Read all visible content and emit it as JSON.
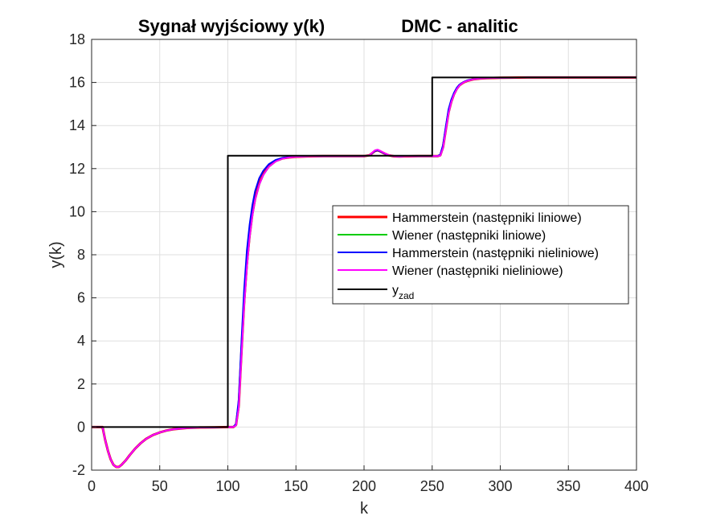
{
  "chart_data": {
    "type": "line",
    "title_left": "Sygnał wyjściowy y(k)",
    "title_right": "DMC - analitic",
    "xlabel": "k",
    "ylabel": "y(k)",
    "xlim": [
      0,
      400
    ],
    "ylim": [
      -2,
      18
    ],
    "xticks": [
      0,
      50,
      100,
      150,
      200,
      250,
      300,
      350,
      400
    ],
    "yticks": [
      -2,
      0,
      2,
      4,
      6,
      8,
      10,
      12,
      14,
      16,
      18
    ],
    "grid": true,
    "legend_position": "center-right",
    "series": [
      {
        "name": "Hammerstein (następniki liniowe)",
        "color": "#ff0000",
        "x": [
          0,
          8,
          10,
          12,
          14,
          16,
          18,
          20,
          22,
          25,
          28,
          32,
          36,
          40,
          45,
          50,
          55,
          60,
          70,
          80,
          90,
          100,
          104,
          106,
          108,
          110,
          112,
          114,
          116,
          118,
          120,
          123,
          126,
          130,
          135,
          140,
          145,
          150,
          160,
          170,
          180,
          190,
          200,
          204,
          206,
          208,
          210,
          212,
          215,
          218,
          222,
          226,
          230,
          240,
          250,
          254,
          256,
          258,
          260,
          262,
          264,
          266,
          268,
          270,
          273,
          276,
          280,
          285,
          290,
          300,
          320,
          350,
          400
        ],
        "y": [
          0,
          0,
          -0.6,
          -1.1,
          -1.5,
          -1.75,
          -1.85,
          -1.85,
          -1.75,
          -1.55,
          -1.3,
          -1.0,
          -0.75,
          -0.55,
          -0.37,
          -0.25,
          -0.16,
          -0.1,
          -0.04,
          -0.02,
          -0.01,
          0,
          0,
          0.1,
          1.0,
          3.5,
          5.8,
          7.6,
          8.9,
          9.9,
          10.6,
          11.3,
          11.75,
          12.1,
          12.35,
          12.47,
          12.52,
          12.55,
          12.57,
          12.58,
          12.58,
          12.58,
          12.58,
          12.62,
          12.72,
          12.82,
          12.85,
          12.8,
          12.7,
          12.62,
          12.57,
          12.56,
          12.57,
          12.58,
          12.58,
          12.58,
          12.62,
          13.0,
          13.8,
          14.6,
          15.1,
          15.45,
          15.7,
          15.87,
          16.0,
          16.08,
          16.14,
          16.18,
          16.2,
          16.22,
          16.23,
          16.23,
          16.23
        ]
      },
      {
        "name": "Wiener (następniki liniowe)",
        "color": "#00cc00",
        "x": [
          0,
          8,
          10,
          12,
          14,
          16,
          18,
          20,
          22,
          25,
          28,
          32,
          36,
          40,
          45,
          50,
          55,
          60,
          70,
          80,
          90,
          100,
          104,
          106,
          108,
          110,
          112,
          114,
          116,
          118,
          120,
          123,
          126,
          130,
          135,
          140,
          145,
          150,
          160,
          170,
          180,
          190,
          200,
          204,
          206,
          208,
          210,
          212,
          215,
          218,
          222,
          226,
          230,
          240,
          250,
          254,
          256,
          258,
          260,
          262,
          264,
          266,
          268,
          270,
          273,
          276,
          280,
          285,
          290,
          300,
          320,
          350,
          400
        ],
        "y": [
          0,
          0,
          -0.6,
          -1.1,
          -1.5,
          -1.75,
          -1.85,
          -1.85,
          -1.75,
          -1.55,
          -1.3,
          -1.0,
          -0.75,
          -0.55,
          -0.37,
          -0.25,
          -0.16,
          -0.1,
          -0.04,
          -0.02,
          -0.01,
          0,
          0,
          0.08,
          0.9,
          3.3,
          5.6,
          7.4,
          8.8,
          9.8,
          10.55,
          11.25,
          11.7,
          12.08,
          12.33,
          12.46,
          12.52,
          12.55,
          12.57,
          12.58,
          12.58,
          12.58,
          12.58,
          12.62,
          12.72,
          12.82,
          12.85,
          12.8,
          12.7,
          12.62,
          12.57,
          12.56,
          12.57,
          12.58,
          12.58,
          12.58,
          12.6,
          12.95,
          13.75,
          14.55,
          15.08,
          15.43,
          15.68,
          15.86,
          16.0,
          16.08,
          16.14,
          16.18,
          16.2,
          16.22,
          16.23,
          16.23,
          16.23
        ]
      },
      {
        "name": "Hammerstein (następniki nieliniowe)",
        "color": "#0000ff",
        "x": [
          0,
          8,
          10,
          12,
          14,
          16,
          18,
          20,
          22,
          25,
          28,
          32,
          36,
          40,
          45,
          50,
          55,
          60,
          70,
          80,
          90,
          100,
          104,
          106,
          108,
          110,
          112,
          114,
          116,
          118,
          120,
          123,
          126,
          130,
          135,
          140,
          145,
          150,
          160,
          170,
          180,
          190,
          200,
          204,
          206,
          208,
          210,
          212,
          215,
          218,
          222,
          226,
          230,
          240,
          250,
          254,
          256,
          258,
          260,
          262,
          264,
          266,
          268,
          270,
          273,
          276,
          280,
          285,
          290,
          300,
          320,
          350,
          400
        ],
        "y": [
          0,
          0,
          -0.6,
          -1.1,
          -1.5,
          -1.75,
          -1.85,
          -1.85,
          -1.75,
          -1.55,
          -1.3,
          -1.0,
          -0.75,
          -0.55,
          -0.37,
          -0.25,
          -0.16,
          -0.1,
          -0.04,
          -0.02,
          -0.01,
          0,
          0,
          0.15,
          1.3,
          4.0,
          6.4,
          8.2,
          9.4,
          10.3,
          10.95,
          11.55,
          11.9,
          12.2,
          12.4,
          12.5,
          12.54,
          12.56,
          12.57,
          12.58,
          12.58,
          12.58,
          12.58,
          12.62,
          12.72,
          12.82,
          12.85,
          12.8,
          12.7,
          12.62,
          12.57,
          12.56,
          12.57,
          12.58,
          12.58,
          12.58,
          12.65,
          13.1,
          13.95,
          14.75,
          15.2,
          15.52,
          15.75,
          15.9,
          16.02,
          16.1,
          16.15,
          16.19,
          16.21,
          16.22,
          16.23,
          16.23,
          16.23
        ]
      },
      {
        "name": "Wiener (następniki nieliniowe)",
        "color": "#ff00ff",
        "x": [
          0,
          8,
          10,
          12,
          14,
          16,
          18,
          20,
          22,
          25,
          28,
          32,
          36,
          40,
          45,
          50,
          55,
          60,
          70,
          80,
          90,
          100,
          104,
          106,
          108,
          110,
          112,
          114,
          116,
          118,
          120,
          123,
          126,
          130,
          135,
          140,
          145,
          150,
          160,
          170,
          180,
          190,
          200,
          204,
          206,
          208,
          210,
          212,
          215,
          218,
          222,
          226,
          230,
          240,
          250,
          254,
          256,
          258,
          260,
          262,
          264,
          266,
          268,
          270,
          273,
          276,
          280,
          285,
          290,
          300,
          320,
          350,
          400
        ],
        "y": [
          0,
          0,
          -0.6,
          -1.1,
          -1.5,
          -1.75,
          -1.85,
          -1.85,
          -1.75,
          -1.55,
          -1.3,
          -1.0,
          -0.75,
          -0.55,
          -0.37,
          -0.25,
          -0.16,
          -0.1,
          -0.04,
          -0.02,
          -0.01,
          0,
          0,
          0.08,
          0.9,
          3.3,
          5.6,
          7.4,
          8.8,
          9.8,
          10.55,
          11.25,
          11.7,
          12.08,
          12.33,
          12.46,
          12.52,
          12.55,
          12.57,
          12.58,
          12.58,
          12.58,
          12.58,
          12.62,
          12.74,
          12.85,
          12.88,
          12.82,
          12.72,
          12.63,
          12.57,
          12.56,
          12.57,
          12.58,
          12.58,
          12.58,
          12.6,
          12.95,
          13.75,
          14.55,
          15.08,
          15.43,
          15.68,
          15.86,
          16.0,
          16.08,
          16.14,
          16.18,
          16.2,
          16.22,
          16.23,
          16.23,
          16.23
        ]
      },
      {
        "name": "y",
        "name_subscript": "zad",
        "color": "#000000",
        "x": [
          0,
          100,
          100,
          250,
          250,
          400
        ],
        "y": [
          0,
          0,
          12.6,
          12.6,
          16.23,
          16.23
        ]
      }
    ]
  }
}
